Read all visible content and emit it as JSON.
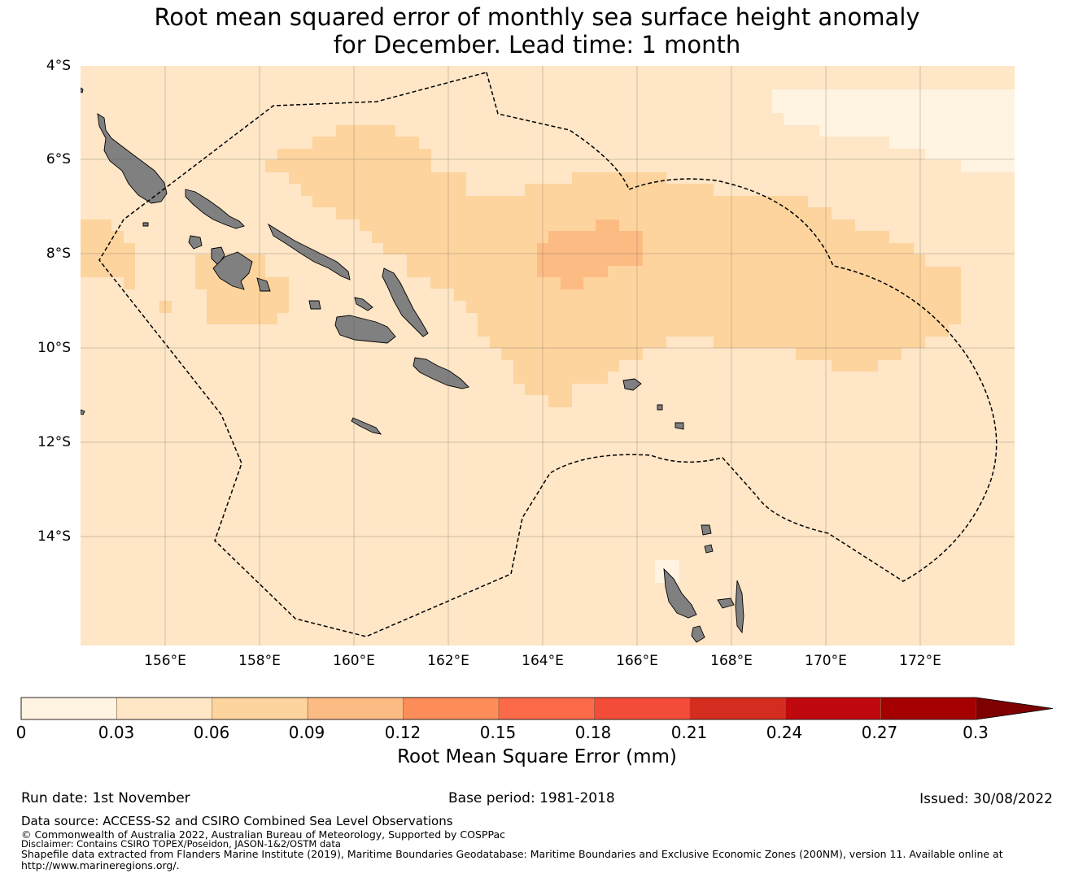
{
  "title": {
    "line1": "Root mean squared error of monthly sea surface height anomaly",
    "line2": "for December. Lead time: 1 month"
  },
  "map": {
    "lat_ticks": [
      "4°S",
      "6°S",
      "8°S",
      "10°S",
      "12°S",
      "14°S"
    ],
    "lon_ticks": [
      "156°E",
      "158°E",
      "160°E",
      "162°E",
      "164°E",
      "166°E",
      "168°E",
      "170°E",
      "172°E"
    ],
    "extent": {
      "lon_min": 154.2,
      "lon_max": 174.0,
      "lat_max": -4.0,
      "lat_min": -16.3
    },
    "grid": true,
    "land_color": "#808080",
    "boundary_style": "dashed"
  },
  "colorbar": {
    "title": "Root Mean Square Error (mm)",
    "ticks": [
      "0",
      "0.03",
      "0.06",
      "0.09",
      "0.12",
      "0.15",
      "0.18",
      "0.21",
      "0.24",
      "0.27",
      "0.3"
    ],
    "colors": [
      "#fff3e1",
      "#fee6c6",
      "#fdd49e",
      "#fdbb84",
      "#fc8d59",
      "#fc6a4a",
      "#f34c38",
      "#d42c1f",
      "#c0090f",
      "#a50000"
    ],
    "extend_color": "#7f0000",
    "extend": "max"
  },
  "footer": {
    "run_date": "Run date: 1st November",
    "base_period": "Base period: 1981-2018",
    "issued": "Issued: 30/08/2022",
    "data_source": "Data source: ACCESS-S2 and CSIRO Combined Sea Level Observations",
    "copyright": "© Commonwealth of Australia 2022, Australian Bureau of Meteorology, Supported by COSPPac",
    "disclaimer": "Disclaimer: Contains CSIRO TOPEX/Poseidon, JASON-1&2/OSTM data",
    "shapefile": "Shapefile data extracted from Flanders Marine Institute (2019), Maritime Boundaries Geodatabase: Maritime Boundaries and Exclusive Economic Zones (200NM), version 11. Available online at",
    "url": "http://www.marineregions.org/."
  }
}
